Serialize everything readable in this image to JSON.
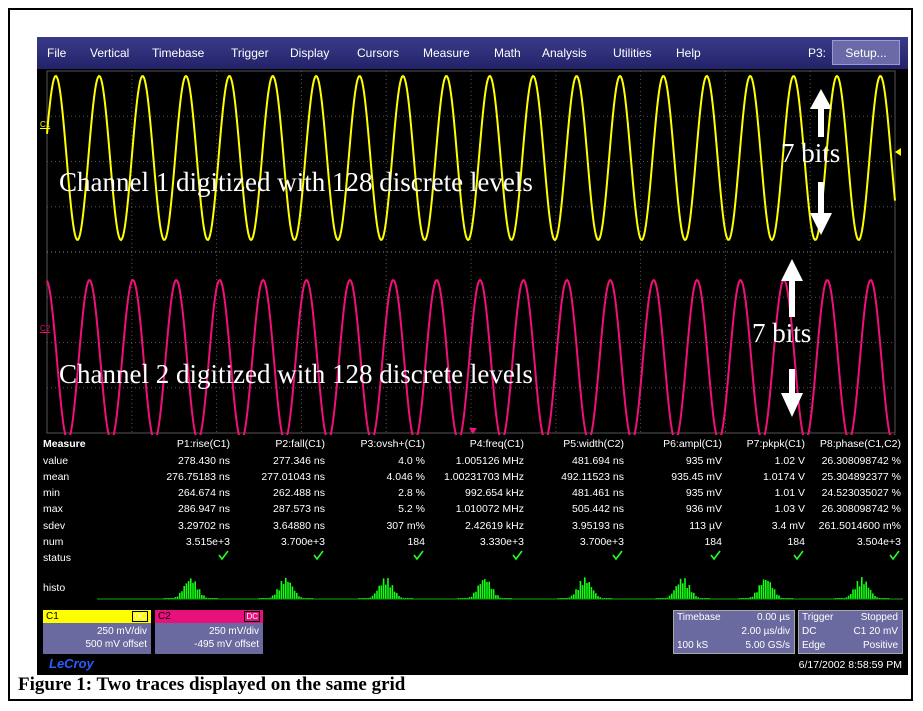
{
  "menu": {
    "items": [
      "File",
      "Vertical",
      "Timebase",
      "Trigger",
      "Display",
      "Cursors",
      "Measure",
      "Math",
      "Analysis",
      "Utilities",
      "Help"
    ],
    "p3": "P3:",
    "setup": "Setup..."
  },
  "traces": {
    "c1_label": "C1",
    "c2_label": "C2"
  },
  "annotations": {
    "channel1": "Channel 1 digitized with 128 discrete levels",
    "bits1": "7 bits",
    "channel2": "Channel 2 digitized with 128 discrete levels",
    "bits2": "7 bits"
  },
  "measure": {
    "header": [
      "Measure",
      "P1:rise(C1)",
      "P2:fall(C1)",
      "P3:ovsh+(C1)",
      "P4:freq(C1)",
      "P5:width(C2)",
      "P6:ampl(C1)",
      "P7:pkpk(C1)",
      "P8:phase(C1,C2)"
    ],
    "rows": [
      [
        "value",
        "278.430 ns",
        "277.346 ns",
        "4.0 %",
        "1.005126 MHz",
        "481.694 ns",
        "935 mV",
        "1.02 V",
        "26.308098742 %"
      ],
      [
        "mean",
        "276.75183 ns",
        "277.01043 ns",
        "4.046 %",
        "1.00231703 MHz",
        "492.11523 ns",
        "935.45 mV",
        "1.0174 V",
        "25.304892377 %"
      ],
      [
        "min",
        "264.674 ns",
        "262.488 ns",
        "2.8 %",
        "992.654 kHz",
        "481.461 ns",
        "935 mV",
        "1.01 V",
        "24.523035027 %"
      ],
      [
        "max",
        "286.947 ns",
        "287.573 ns",
        "5.2 %",
        "1.010072 MHz",
        "505.442 ns",
        "936 mV",
        "1.03 V",
        "26.308098742 %"
      ],
      [
        "sdev",
        "3.29702 ns",
        "3.64880 ns",
        "307 m%",
        "2.42619 kHz",
        "3.95193 ns",
        "113 µV",
        "3.4 mV",
        "261.5014600 m%"
      ],
      [
        "num",
        "3.515e+3",
        "3.700e+3",
        "184",
        "3.330e+3",
        "3.700e+3",
        "184",
        "184",
        "3.504e+3"
      ]
    ],
    "status": "status",
    "histo": "histo"
  },
  "channels": [
    {
      "name": "C1",
      "coupling": "DC",
      "scale": "250 mV/div",
      "offset": "500 mV offset"
    },
    {
      "name": "C2",
      "coupling": "DC",
      "scale": "250 mV/div",
      "offset": "-495 mV offset"
    }
  ],
  "timebase": {
    "title": "Timebase",
    "delay": "0.00 µs",
    "scale": "2.00 µs/div",
    "samples": "100 kS",
    "rate": "5.00 GS/s"
  },
  "trigger": {
    "title": "Trigger",
    "state": "Stopped",
    "coupling": "DC",
    "level": "C1 20 mV",
    "type": "Edge",
    "slope": "Positive"
  },
  "footer": {
    "brand": "LeCroy",
    "datetime": "6/17/2002 8:58:59 PM"
  },
  "caption": "Figure 1:  Two traces displayed on the same grid"
}
